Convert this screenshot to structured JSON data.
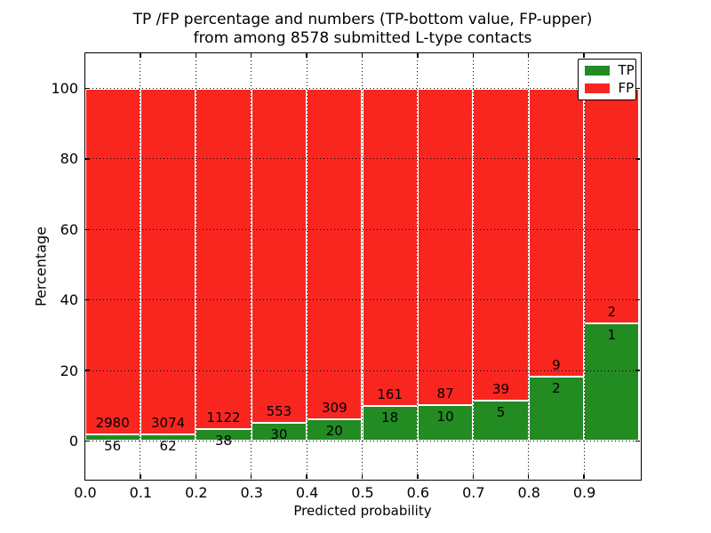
{
  "chart_data": {
    "type": "bar",
    "stacking": "percent",
    "title_line1": "TP /FP percentage and numbers (TP-bottom value, FP-upper)",
    "title_line2": "from among 8578 submitted L-type contacts",
    "xlabel": "Predicted probability",
    "ylabel": "Percentage",
    "x_tick_labels": [
      "0.0",
      "0.1",
      "0.2",
      "0.3",
      "0.4",
      "0.5",
      "0.6",
      "0.7",
      "0.8",
      "0.9"
    ],
    "y_tick_values": [
      0,
      20,
      40,
      60,
      80,
      100
    ],
    "y_tick_labels": [
      "0",
      "20",
      "40",
      "60",
      "80",
      "100"
    ],
    "xlim": [
      0.0,
      1.0
    ],
    "ylim": [
      -10.6,
      110
    ],
    "grid": "dotted",
    "legend_position": "upper-right",
    "bins": [
      "0.0-0.1",
      "0.1-0.2",
      "0.2-0.3",
      "0.3-0.4",
      "0.4-0.5",
      "0.5-0.6",
      "0.6-0.7",
      "0.7-0.8",
      "0.8-0.9",
      "0.9-1.0"
    ],
    "series": [
      {
        "name": "TP",
        "color": "#228b22",
        "values": [
          56,
          62,
          38,
          30,
          20,
          18,
          10,
          5,
          2,
          1
        ]
      },
      {
        "name": "FP",
        "color": "#f92620",
        "values": [
          2980,
          3074,
          1122,
          553,
          309,
          161,
          87,
          39,
          9,
          2
        ]
      }
    ],
    "colors": {
      "tp": "#228b22",
      "fp": "#f92620",
      "grid": "#000000",
      "background": "#ffffff"
    }
  }
}
